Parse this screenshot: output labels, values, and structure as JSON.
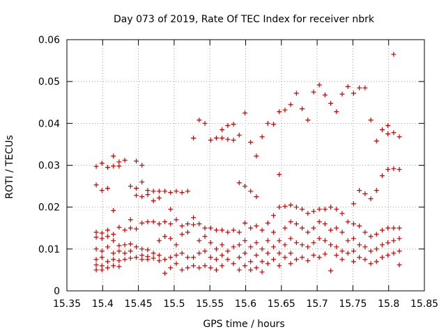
{
  "chart_data": {
    "type": "scatter",
    "title": "Day 073 of 2019, Rate Of TEC Index for receiver nbrk",
    "xlabel": "GPS time / hours",
    "ylabel": "ROTI / TECUs",
    "xlim": [
      15.35,
      15.85
    ],
    "ylim": [
      0,
      0.06
    ],
    "xticks": [
      "15.35",
      "15.4",
      "15.45",
      "15.5",
      "15.55",
      "15.6",
      "15.65",
      "15.7",
      "15.75",
      "15.8",
      "15.85"
    ],
    "yticks": [
      "0",
      "0.01",
      "0.02",
      "0.03",
      "0.04",
      "0.05",
      "0.06"
    ],
    "grid": true,
    "marker": "+",
    "color": "#cc0000",
    "series": [
      {
        "name": "ROTI",
        "points": [
          [
            15.391,
            0.0297
          ],
          [
            15.391,
            0.0253
          ],
          [
            15.391,
            0.014
          ],
          [
            15.391,
            0.0128
          ],
          [
            15.391,
            0.01
          ],
          [
            15.391,
            0.0075
          ],
          [
            15.391,
            0.0062
          ],
          [
            15.391,
            0.005
          ],
          [
            15.399,
            0.0305
          ],
          [
            15.399,
            0.024
          ],
          [
            15.399,
            0.0138
          ],
          [
            15.399,
            0.0125
          ],
          [
            15.399,
            0.0095
          ],
          [
            15.399,
            0.008
          ],
          [
            15.399,
            0.006
          ],
          [
            15.399,
            0.005
          ],
          [
            15.407,
            0.0295
          ],
          [
            15.407,
            0.0245
          ],
          [
            15.407,
            0.0145
          ],
          [
            15.407,
            0.013
          ],
          [
            15.407,
            0.0105
          ],
          [
            15.407,
            0.007
          ],
          [
            15.407,
            0.0055
          ],
          [
            15.415,
            0.0322
          ],
          [
            15.415,
            0.0298
          ],
          [
            15.415,
            0.0192
          ],
          [
            15.415,
            0.0135
          ],
          [
            15.415,
            0.012
          ],
          [
            15.415,
            0.009
          ],
          [
            15.415,
            0.0075
          ],
          [
            15.415,
            0.006
          ],
          [
            15.423,
            0.0308
          ],
          [
            15.423,
            0.0298
          ],
          [
            15.423,
            0.0152
          ],
          [
            15.423,
            0.0108
          ],
          [
            15.423,
            0.0095
          ],
          [
            15.423,
            0.0072
          ],
          [
            15.423,
            0.0058
          ],
          [
            15.431,
            0.0312
          ],
          [
            15.431,
            0.0145
          ],
          [
            15.431,
            0.011
          ],
          [
            15.431,
            0.009
          ],
          [
            15.431,
            0.0075
          ],
          [
            15.439,
            0.025
          ],
          [
            15.439,
            0.017
          ],
          [
            15.439,
            0.015
          ],
          [
            15.439,
            0.0112
          ],
          [
            15.439,
            0.0095
          ],
          [
            15.439,
            0.0078
          ],
          [
            15.447,
            0.031
          ],
          [
            15.447,
            0.0245
          ],
          [
            15.447,
            0.0228
          ],
          [
            15.447,
            0.0148
          ],
          [
            15.447,
            0.0105
          ],
          [
            15.447,
            0.008
          ],
          [
            15.455,
            0.03
          ],
          [
            15.455,
            0.026
          ],
          [
            15.455,
            0.0225
          ],
          [
            15.455,
            0.0162
          ],
          [
            15.455,
            0.01
          ],
          [
            15.455,
            0.0085
          ],
          [
            15.455,
            0.0075
          ],
          [
            15.463,
            0.024
          ],
          [
            15.463,
            0.023
          ],
          [
            15.463,
            0.0165
          ],
          [
            15.463,
            0.0098
          ],
          [
            15.463,
            0.0082
          ],
          [
            15.463,
            0.0075
          ],
          [
            15.471,
            0.0238
          ],
          [
            15.471,
            0.0215
          ],
          [
            15.471,
            0.0165
          ],
          [
            15.471,
            0.009
          ],
          [
            15.471,
            0.0078
          ],
          [
            15.479,
            0.0238
          ],
          [
            15.479,
            0.0222
          ],
          [
            15.479,
            0.016
          ],
          [
            15.479,
            0.012
          ],
          [
            15.479,
            0.0085
          ],
          [
            15.479,
            0.0072
          ],
          [
            15.487,
            0.0238
          ],
          [
            15.487,
            0.0165
          ],
          [
            15.487,
            0.013
          ],
          [
            15.487,
            0.0075
          ],
          [
            15.487,
            0.0042
          ],
          [
            15.495,
            0.0235
          ],
          [
            15.495,
            0.0195
          ],
          [
            15.495,
            0.016
          ],
          [
            15.495,
            0.0125
          ],
          [
            15.495,
            0.008
          ],
          [
            15.495,
            0.0055
          ],
          [
            15.503,
            0.0238
          ],
          [
            15.503,
            0.017
          ],
          [
            15.503,
            0.011
          ],
          [
            15.503,
            0.0085
          ],
          [
            15.503,
            0.0065
          ],
          [
            15.511,
            0.0235
          ],
          [
            15.511,
            0.0155
          ],
          [
            15.511,
            0.0135
          ],
          [
            15.511,
            0.009
          ],
          [
            15.511,
            0.005
          ],
          [
            15.519,
            0.0238
          ],
          [
            15.519,
            0.016
          ],
          [
            15.519,
            0.014
          ],
          [
            15.519,
            0.008
          ],
          [
            15.519,
            0.0055
          ],
          [
            15.527,
            0.0365
          ],
          [
            15.527,
            0.0175
          ],
          [
            15.527,
            0.0158
          ],
          [
            15.527,
            0.008
          ],
          [
            15.527,
            0.006
          ],
          [
            15.535,
            0.0408
          ],
          [
            15.535,
            0.016
          ],
          [
            15.535,
            0.012
          ],
          [
            15.535,
            0.009
          ],
          [
            15.535,
            0.0055
          ],
          [
            15.543,
            0.04
          ],
          [
            15.543,
            0.015
          ],
          [
            15.543,
            0.013
          ],
          [
            15.543,
            0.0095
          ],
          [
            15.543,
            0.006
          ],
          [
            15.551,
            0.036
          ],
          [
            15.551,
            0.015
          ],
          [
            15.551,
            0.0115
          ],
          [
            15.551,
            0.008
          ],
          [
            15.551,
            0.0055
          ],
          [
            15.559,
            0.0365
          ],
          [
            15.559,
            0.0145
          ],
          [
            15.559,
            0.01
          ],
          [
            15.559,
            0.0075
          ],
          [
            15.559,
            0.005
          ],
          [
            15.567,
            0.0385
          ],
          [
            15.567,
            0.0365
          ],
          [
            15.567,
            0.0145
          ],
          [
            15.567,
            0.011
          ],
          [
            15.567,
            0.0085
          ],
          [
            15.567,
            0.006
          ],
          [
            15.575,
            0.0395
          ],
          [
            15.575,
            0.0362
          ],
          [
            15.575,
            0.014
          ],
          [
            15.575,
            0.0095
          ],
          [
            15.575,
            0.0075
          ],
          [
            15.583,
            0.0398
          ],
          [
            15.583,
            0.036
          ],
          [
            15.583,
            0.0145
          ],
          [
            15.583,
            0.0105
          ],
          [
            15.583,
            0.0065
          ],
          [
            15.591,
            0.0372
          ],
          [
            15.591,
            0.0258
          ],
          [
            15.591,
            0.014
          ],
          [
            15.591,
            0.011
          ],
          [
            15.591,
            0.008
          ],
          [
            15.591,
            0.005
          ],
          [
            15.599,
            0.0425
          ],
          [
            15.599,
            0.025
          ],
          [
            15.599,
            0.0162
          ],
          [
            15.599,
            0.012
          ],
          [
            15.599,
            0.009
          ],
          [
            15.599,
            0.006
          ],
          [
            15.607,
            0.0355
          ],
          [
            15.607,
            0.0238
          ],
          [
            15.607,
            0.015
          ],
          [
            15.607,
            0.0105
          ],
          [
            15.607,
            0.007
          ],
          [
            15.607,
            0.005
          ],
          [
            15.615,
            0.0322
          ],
          [
            15.615,
            0.0225
          ],
          [
            15.615,
            0.0155
          ],
          [
            15.615,
            0.0115
          ],
          [
            15.615,
            0.0085
          ],
          [
            15.615,
            0.0055
          ],
          [
            15.623,
            0.0368
          ],
          [
            15.623,
            0.0145
          ],
          [
            15.623,
            0.01
          ],
          [
            15.623,
            0.007
          ],
          [
            15.623,
            0.0045
          ],
          [
            15.631,
            0.04
          ],
          [
            15.631,
            0.0162
          ],
          [
            15.631,
            0.012
          ],
          [
            15.631,
            0.009
          ],
          [
            15.631,
            0.0065
          ],
          [
            15.639,
            0.0398
          ],
          [
            15.639,
            0.018
          ],
          [
            15.639,
            0.014
          ],
          [
            15.639,
            0.0105
          ],
          [
            15.639,
            0.0075
          ],
          [
            15.647,
            0.0428
          ],
          [
            15.647,
            0.0278
          ],
          [
            15.647,
            0.02
          ],
          [
            15.647,
            0.012
          ],
          [
            15.647,
            0.009
          ],
          [
            15.647,
            0.006
          ],
          [
            15.655,
            0.0432
          ],
          [
            15.655,
            0.0202
          ],
          [
            15.655,
            0.015
          ],
          [
            15.655,
            0.011
          ],
          [
            15.655,
            0.008
          ],
          [
            15.663,
            0.0445
          ],
          [
            15.663,
            0.0205
          ],
          [
            15.663,
            0.0165
          ],
          [
            15.663,
            0.0125
          ],
          [
            15.663,
            0.009
          ],
          [
            15.663,
            0.0065
          ],
          [
            15.671,
            0.0472
          ],
          [
            15.671,
            0.02
          ],
          [
            15.671,
            0.016
          ],
          [
            15.671,
            0.0115
          ],
          [
            15.671,
            0.0075
          ],
          [
            15.679,
            0.0435
          ],
          [
            15.679,
            0.0195
          ],
          [
            15.679,
            0.015
          ],
          [
            15.679,
            0.011
          ],
          [
            15.679,
            0.008
          ],
          [
            15.687,
            0.0408
          ],
          [
            15.687,
            0.0185
          ],
          [
            15.687,
            0.014
          ],
          [
            15.687,
            0.0105
          ],
          [
            15.687,
            0.0072
          ],
          [
            15.695,
            0.0475
          ],
          [
            15.695,
            0.019
          ],
          [
            15.695,
            0.015
          ],
          [
            15.695,
            0.0115
          ],
          [
            15.695,
            0.0085
          ],
          [
            15.703,
            0.0492
          ],
          [
            15.703,
            0.0195
          ],
          [
            15.703,
            0.0165
          ],
          [
            15.703,
            0.0125
          ],
          [
            15.703,
            0.008
          ],
          [
            15.711,
            0.0468
          ],
          [
            15.711,
            0.0195
          ],
          [
            15.711,
            0.016
          ],
          [
            15.711,
            0.012
          ],
          [
            15.711,
            0.0088
          ],
          [
            15.719,
            0.0448
          ],
          [
            15.719,
            0.02
          ],
          [
            15.719,
            0.0145
          ],
          [
            15.719,
            0.011
          ],
          [
            15.719,
            0.0048
          ],
          [
            15.727,
            0.0428
          ],
          [
            15.727,
            0.0195
          ],
          [
            15.727,
            0.015
          ],
          [
            15.727,
            0.0105
          ],
          [
            15.727,
            0.0085
          ],
          [
            15.735,
            0.047
          ],
          [
            15.735,
            0.0185
          ],
          [
            15.735,
            0.014
          ],
          [
            15.735,
            0.0095
          ],
          [
            15.735,
            0.0075
          ],
          [
            15.743,
            0.0488
          ],
          [
            15.743,
            0.0165
          ],
          [
            15.743,
            0.012
          ],
          [
            15.743,
            0.009
          ],
          [
            15.751,
            0.0472
          ],
          [
            15.751,
            0.0208
          ],
          [
            15.751,
            0.016
          ],
          [
            15.751,
            0.0125
          ],
          [
            15.751,
            0.0095
          ],
          [
            15.751,
            0.007
          ],
          [
            15.759,
            0.0485
          ],
          [
            15.759,
            0.024
          ],
          [
            15.759,
            0.0155
          ],
          [
            15.759,
            0.011
          ],
          [
            15.759,
            0.008
          ],
          [
            15.767,
            0.0485
          ],
          [
            15.767,
            0.0232
          ],
          [
            15.767,
            0.014
          ],
          [
            15.767,
            0.0105
          ],
          [
            15.767,
            0.0075
          ],
          [
            15.775,
            0.0408
          ],
          [
            15.775,
            0.022
          ],
          [
            15.775,
            0.013
          ],
          [
            15.775,
            0.0095
          ],
          [
            15.775,
            0.0065
          ],
          [
            15.783,
            0.0358
          ],
          [
            15.783,
            0.024
          ],
          [
            15.783,
            0.0135
          ],
          [
            15.783,
            0.01
          ],
          [
            15.783,
            0.007
          ],
          [
            15.791,
            0.0385
          ],
          [
            15.791,
            0.0275
          ],
          [
            15.791,
            0.0145
          ],
          [
            15.791,
            0.011
          ],
          [
            15.791,
            0.008
          ],
          [
            15.799,
            0.0395
          ],
          [
            15.799,
            0.0375
          ],
          [
            15.799,
            0.029
          ],
          [
            15.799,
            0.015
          ],
          [
            15.799,
            0.0115
          ],
          [
            15.799,
            0.0085
          ],
          [
            15.807,
            0.0565
          ],
          [
            15.807,
            0.0378
          ],
          [
            15.807,
            0.0292
          ],
          [
            15.807,
            0.015
          ],
          [
            15.807,
            0.012
          ],
          [
            15.807,
            0.009
          ],
          [
            15.815,
            0.0368
          ],
          [
            15.815,
            0.029
          ],
          [
            15.815,
            0.015
          ],
          [
            15.815,
            0.0125
          ],
          [
            15.815,
            0.0095
          ],
          [
            15.815,
            0.0062
          ]
        ]
      }
    ]
  }
}
